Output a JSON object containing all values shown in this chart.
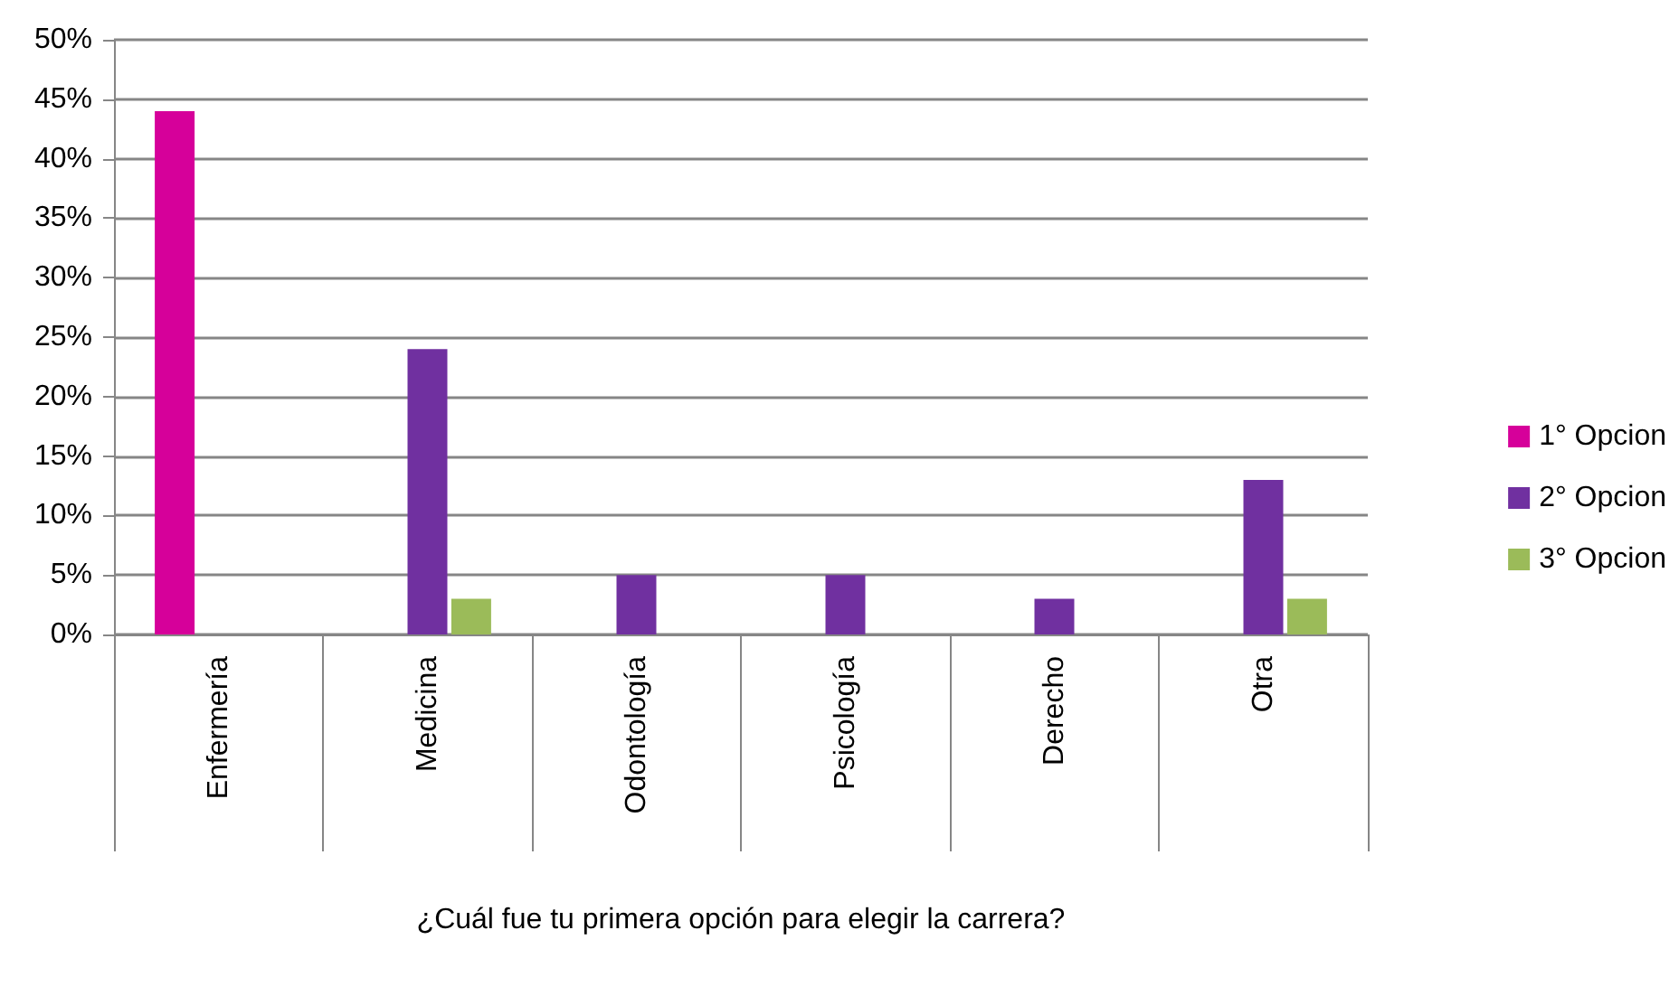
{
  "chart_data": {
    "type": "bar",
    "xlabel": "¿Cuál fue tu primera opción para elegir la carrera?",
    "categories": [
      "Enfermería",
      "Medicina",
      "Odontología",
      "Psicología",
      "Derecho",
      "Otra"
    ],
    "series": [
      {
        "name": "1° Opcion",
        "color": "#d6009a",
        "values": [
          44,
          null,
          null,
          null,
          null,
          null
        ]
      },
      {
        "name": "2° Opcion",
        "color": "#7030a0",
        "values": [
          null,
          24,
          5,
          5,
          3,
          13
        ]
      },
      {
        "name": "3° Opcion",
        "color": "#9bbb59",
        "values": [
          null,
          3,
          null,
          null,
          null,
          3
        ]
      }
    ],
    "ylim": [
      0,
      50
    ],
    "yticks": [
      {
        "value": 0,
        "label": "0%"
      },
      {
        "value": 5,
        "label": "5%"
      },
      {
        "value": 10,
        "label": "10%"
      },
      {
        "value": 15,
        "label": "15%"
      },
      {
        "value": 20,
        "label": "20%"
      },
      {
        "value": 25,
        "label": "25%"
      },
      {
        "value": 30,
        "label": "30%"
      },
      {
        "value": 35,
        "label": "35%"
      },
      {
        "value": 40,
        "label": "40%"
      },
      {
        "value": 45,
        "label": "45%"
      },
      {
        "value": 50,
        "label": "50%"
      }
    ],
    "grid": "y",
    "legend": "right"
  }
}
